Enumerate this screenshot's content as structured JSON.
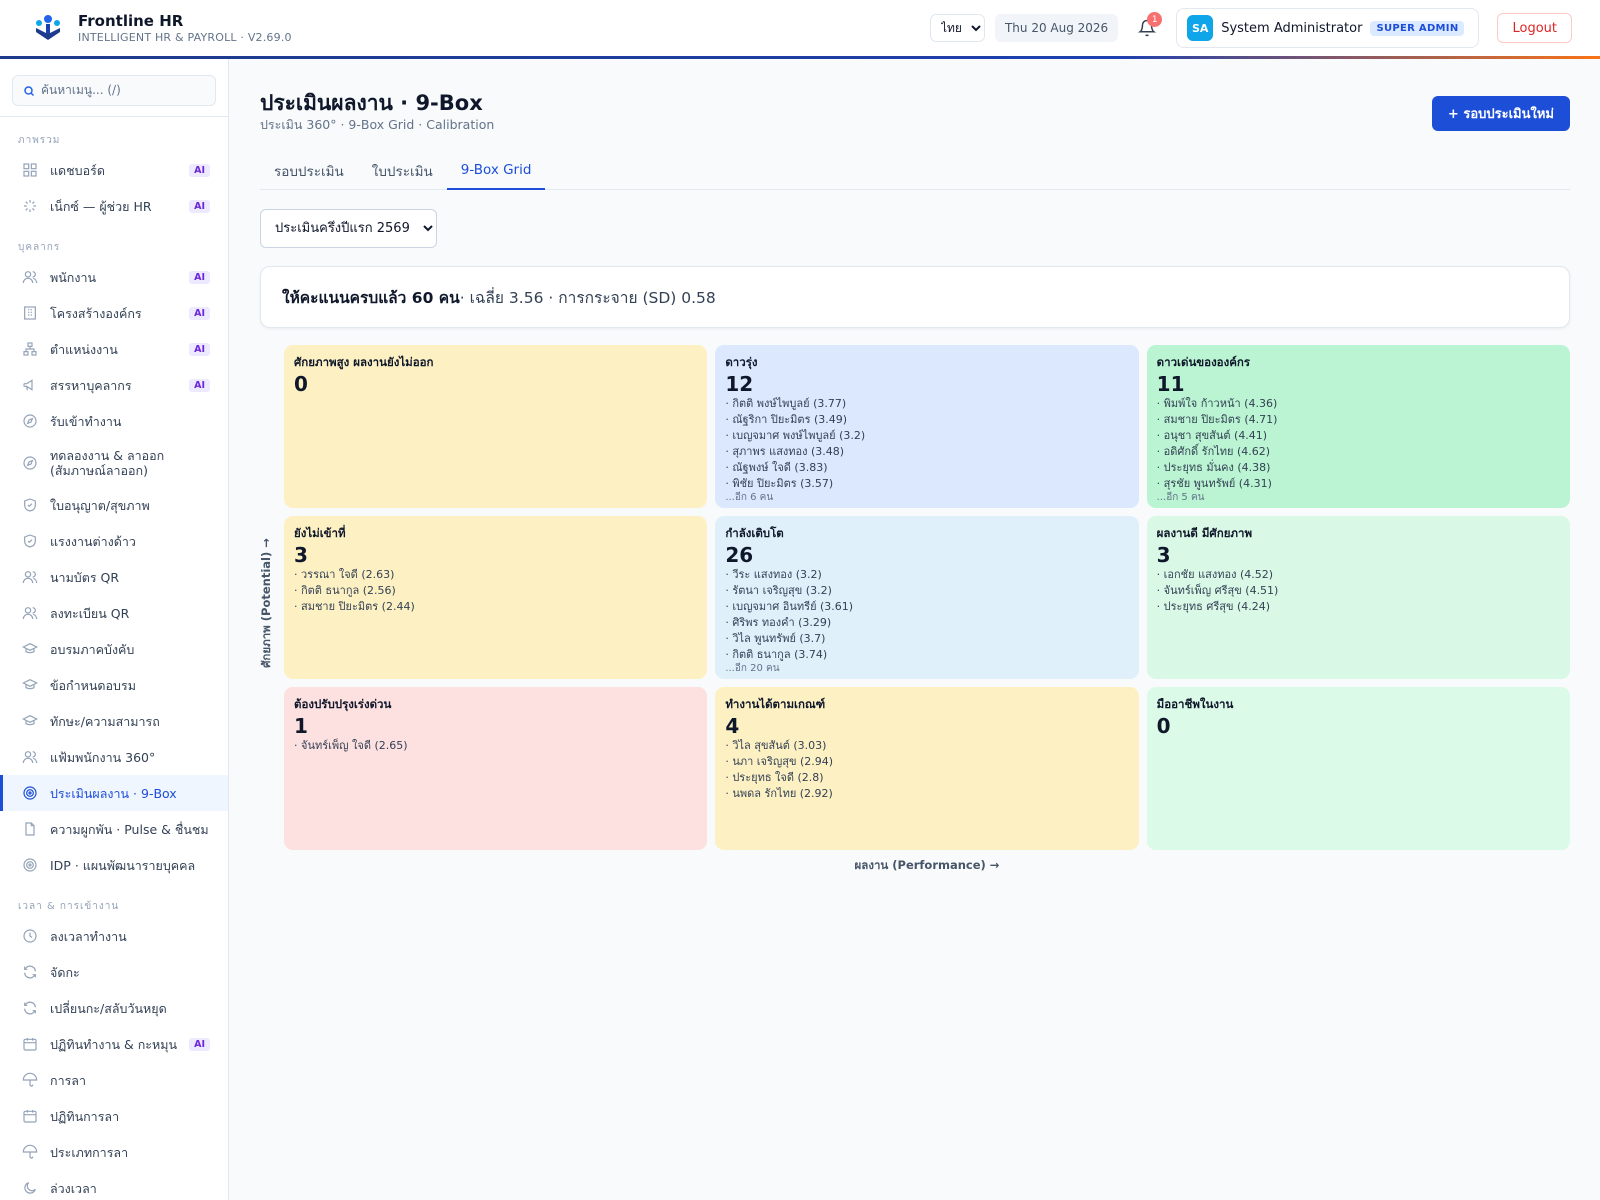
{
  "header": {
    "app_name": "Frontline HR",
    "app_sub": "INTELLIGENT HR & PAYROLL · V2.69.0",
    "lang": "ไทย",
    "date": "Thu 20 Aug 2026",
    "notif_count": "1",
    "avatar_initials": "SA",
    "user_name": "System Administrator",
    "role": "SUPER ADMIN",
    "logout": "Logout"
  },
  "sidebar": {
    "search_placeholder": "ค้นหาเมนู... (/)",
    "ai_label": "AI",
    "sections": [
      {
        "title": "ภาพรวม",
        "items": [
          {
            "label": "แดชบอร์ด",
            "icon": "grid-icon",
            "ai": true
          },
          {
            "label": "เน็กซ์ — ผู้ช่วย HR",
            "icon": "sparkle-icon",
            "ai": true
          }
        ]
      },
      {
        "title": "บุคลากร",
        "items": [
          {
            "label": "พนักงาน",
            "icon": "users-icon",
            "ai": true
          },
          {
            "label": "โครงสร้างองค์กร",
            "icon": "building-icon",
            "ai": true
          },
          {
            "label": "ตำแหน่งงาน",
            "icon": "org-icon",
            "ai": true
          },
          {
            "label": "สรรหาบุคลากร",
            "icon": "megaphone-icon",
            "ai": true
          },
          {
            "label": "รับเข้าทำงาน",
            "icon": "compass-icon",
            "ai": false
          },
          {
            "label": "ทดลองงาน & ลาออก (สัมภาษณ์ลาออก)",
            "icon": "compass-icon",
            "ai": false,
            "tall": true
          },
          {
            "label": "ใบอนุญาต/สุขภาพ",
            "icon": "shield-icon",
            "ai": false
          },
          {
            "label": "แรงงานต่างด้าว",
            "icon": "shield-icon",
            "ai": false
          },
          {
            "label": "นามบัตร QR",
            "icon": "users-icon",
            "ai": false
          },
          {
            "label": "ลงทะเบียน QR",
            "icon": "users-icon",
            "ai": false
          },
          {
            "label": "อบรมภาคบังคับ",
            "icon": "graduation-icon",
            "ai": false
          },
          {
            "label": "ข้อกำหนดอบรม",
            "icon": "graduation-icon",
            "ai": false
          },
          {
            "label": "ทักษะ/ความสามารถ",
            "icon": "graduation-icon",
            "ai": false
          },
          {
            "label": "แฟ้มพนักงาน 360°",
            "icon": "users-icon",
            "ai": false
          },
          {
            "label": "ประเมินผลงาน · 9-Box",
            "icon": "target-icon",
            "ai": false,
            "active": true
          },
          {
            "label": "ความผูกพัน · Pulse & ชื่นชม",
            "icon": "file-icon",
            "ai": false
          },
          {
            "label": "IDP · แผนพัฒนารายบุคคล",
            "icon": "target-icon",
            "ai": false
          }
        ]
      },
      {
        "title": "เวลา & การเข้างาน",
        "items": [
          {
            "label": "ลงเวลาทำงาน",
            "icon": "clock-icon",
            "ai": false
          },
          {
            "label": "จัดกะ",
            "icon": "refresh-icon",
            "ai": false
          },
          {
            "label": "เปลี่ยนกะ/สลับวันหยุด",
            "icon": "refresh-icon",
            "ai": false
          },
          {
            "label": "ปฏิทินทำงาน & กะหมุน",
            "icon": "calendar-icon",
            "ai": true
          },
          {
            "label": "การลา",
            "icon": "umbrella-icon",
            "ai": false
          },
          {
            "label": "ปฏิทินการลา",
            "icon": "calendar-icon",
            "ai": false
          },
          {
            "label": "ประเภทการลา",
            "icon": "umbrella-icon",
            "ai": false
          },
          {
            "label": "ล่วงเวลา",
            "icon": "moon-icon",
            "ai": false
          }
        ]
      }
    ]
  },
  "main": {
    "title": "ประเมินผลงาน · 9-Box",
    "subtitle": "ประเมิน 360° · 9-Box Grid · Calibration",
    "new_button": "+ รอบประเมินใหม่",
    "tabs": [
      {
        "label": "รอบประเมิน",
        "active": false
      },
      {
        "label": "ใบประเมิน",
        "active": false
      },
      {
        "label": "9-Box Grid",
        "active": true
      }
    ],
    "cycle_select": "ประเมินครึ่งปีแรก 2569",
    "summary": {
      "bold": "ให้คะแนนครบแล้ว 60 คน",
      "rest": " · เฉลี่ย 3.56 · การกระจาย (SD) 0.58"
    },
    "y_axis": "ศักยภาพ (Potential) →",
    "x_axis": "ผลงาน (Performance) →",
    "cells": [
      {
        "title": "ศักยภาพสูง ผลงานยังไม่ออก",
        "count": "0",
        "color": "yellow",
        "people": [],
        "more": ""
      },
      {
        "title": "ดาวรุ่ง",
        "count": "12",
        "color": "blue",
        "people": [
          "· กิตติ พงษ์ไพบูลย์ (3.77)",
          "· ณัฐริกา ปิยะมิตร (3.49)",
          "· เบญจมาศ พงษ์ไพบูลย์ (3.2)",
          "· สุภาพร แสงทอง (3.48)",
          "· ณัฐพงษ์ ใจดี (3.83)",
          "· พิชัย ปิยะมิตร (3.57)"
        ],
        "more": "...อีก 6 คน"
      },
      {
        "title": "ดาวเด่นขององค์กร",
        "count": "11",
        "color": "green",
        "people": [
          "· พิมพ์ใจ ก้าวหน้า (4.36)",
          "· สมชาย ปิยะมิตร (4.71)",
          "· อนุชา สุขสันต์ (4.41)",
          "· อดิศักดิ์ รักไทย (4.62)",
          "· ประยุทธ มั่นคง (4.38)",
          "· สุรชัย พูนทรัพย์ (4.31)"
        ],
        "more": "...อีก 5 คน"
      },
      {
        "title": "ยังไม่เข้าที่",
        "count": "3",
        "color": "yellow",
        "people": [
          "· วรรณา ใจดี (2.63)",
          "· กิตติ ธนากูล (2.56)",
          "· สมชาย ปิยะมิตร (2.44)"
        ],
        "more": ""
      },
      {
        "title": "กำลังเติบโต",
        "count": "26",
        "color": "lightblue",
        "people": [
          "· วีระ แสงทอง (3.2)",
          "· รัตนา เจริญสุข (3.2)",
          "· เบญจมาศ อินทรีย์ (3.61)",
          "· ศิริพร ทองคำ (3.29)",
          "· วิไล พูนทรัพย์ (3.7)",
          "· กิตติ ธนากูล (3.74)"
        ],
        "more": "...อีก 20 คน"
      },
      {
        "title": "ผลงานดี มีศักยภาพ",
        "count": "3",
        "color": "lightgreen",
        "people": [
          "· เอกชัย แสงทอง (4.52)",
          "· จันทร์เพ็ญ ศรีสุข (4.51)",
          "· ประยุทธ ศรีสุข (4.24)"
        ],
        "more": ""
      },
      {
        "title": "ต้องปรับปรุงเร่งด่วน",
        "count": "1",
        "color": "pink",
        "people": [
          "· จันทร์เพ็ญ ใจดี (2.65)"
        ],
        "more": ""
      },
      {
        "title": "ทำงานได้ตามเกณฑ์",
        "count": "4",
        "color": "yellow",
        "people": [
          "· วิไล สุขสันต์ (3.03)",
          "· นภา เจริญสุข (2.94)",
          "· ประยุทธ ใจดี (2.8)",
          "· นพดล รักไทย (2.92)"
        ],
        "more": ""
      },
      {
        "title": "มืออาชีพในงาน",
        "count": "0",
        "color": "palegreen",
        "people": [],
        "more": ""
      }
    ]
  }
}
